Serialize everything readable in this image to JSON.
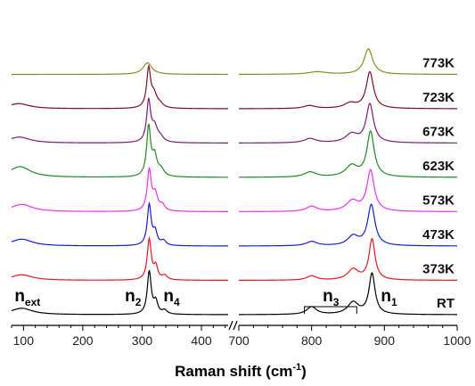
{
  "chart_data": {
    "type": "line",
    "title": "",
    "xlabel": "Raman shift (cm",
    "xlabel_sup": "-1",
    "xlabel_close": ")",
    "ylabel": "",
    "x_break": true,
    "x_ranges": [
      [
        80,
        445
      ],
      [
        700,
        1000
      ]
    ],
    "x_ticks_left": [
      100,
      200,
      300,
      400
    ],
    "x_ticks_right": [
      700,
      800,
      900,
      1000
    ],
    "grid": false,
    "series": [
      {
        "name": "RT",
        "color": "#000000",
        "offset": 0
      },
      {
        "name": "373K",
        "color": "#e8141e",
        "offset": 1
      },
      {
        "name": "473K",
        "color": "#1b1bd6",
        "offset": 2
      },
      {
        "name": "573K",
        "color": "#ee2cee",
        "offset": 3
      },
      {
        "name": "623K",
        "color": "#1e8a1e",
        "offset": 4
      },
      {
        "name": "673K",
        "color": "#7a1a7a",
        "offset": 5
      },
      {
        "name": "723K",
        "color": "#7a0f22",
        "offset": 6
      },
      {
        "name": "773K",
        "color": "#8c8c1e",
        "offset": 7
      }
    ],
    "peaks": [
      {
        "series": "RT",
        "list": [
          [
            97,
            22,
            0.15
          ],
          [
            312,
            4,
            1.0
          ],
          [
            323,
            4,
            0.28
          ],
          [
            338,
            5,
            0.09
          ],
          [
            800,
            8,
            0.18
          ],
          [
            857,
            9,
            0.28
          ],
          [
            883,
            5,
            0.95
          ]
        ]
      },
      {
        "series": "373K",
        "list": [
          [
            97,
            22,
            0.13
          ],
          [
            312,
            4,
            0.95
          ],
          [
            323,
            4,
            0.3
          ],
          [
            338,
            5,
            0.1
          ],
          [
            800,
            8,
            0.1
          ],
          [
            857,
            9,
            0.25
          ],
          [
            883,
            5,
            0.95
          ]
        ]
      },
      {
        "series": "473K",
        "list": [
          [
            97,
            22,
            0.16
          ],
          [
            312,
            4,
            0.95
          ],
          [
            322,
            4,
            0.3
          ],
          [
            336,
            5,
            0.11
          ],
          [
            800,
            9,
            0.1
          ],
          [
            857,
            9,
            0.22
          ],
          [
            882,
            6,
            0.95
          ]
        ]
      },
      {
        "series": "573K",
        "list": [
          [
            97,
            22,
            0.17
          ],
          [
            312,
            4,
            0.95
          ],
          [
            322,
            5,
            0.38
          ],
          [
            334,
            5,
            0.13
          ],
          [
            800,
            9,
            0.12
          ],
          [
            856,
            10,
            0.24
          ],
          [
            881,
            6,
            0.95
          ]
        ]
      },
      {
        "series": "623K",
        "list": [
          [
            94,
            22,
            0.25
          ],
          [
            311,
            4,
            1.15
          ],
          [
            321,
            5,
            0.45
          ],
          [
            332,
            6,
            0.15
          ],
          [
            798,
            10,
            0.12
          ],
          [
            855,
            10,
            0.26
          ],
          [
            881,
            6,
            1.05
          ]
        ]
      },
      {
        "series": "673K",
        "list": [
          [
            93,
            22,
            0.14
          ],
          [
            311,
            4,
            0.95
          ],
          [
            321,
            6,
            0.35
          ],
          [
            331,
            6,
            0.1
          ],
          [
            798,
            10,
            0.1
          ],
          [
            855,
            10,
            0.2
          ],
          [
            880,
            6,
            0.9
          ]
        ]
      },
      {
        "series": "723K",
        "list": [
          [
            92,
            22,
            0.12
          ],
          [
            311,
            4,
            0.9
          ],
          [
            320,
            6,
            0.3
          ],
          [
            330,
            6,
            0.08
          ],
          [
            797,
            10,
            0.07
          ],
          [
            853,
            10,
            0.12
          ],
          [
            880,
            6,
            0.85
          ]
        ]
      },
      {
        "series": "773K",
        "list": [
          [
            309,
            9,
            0.27
          ],
          [
            808,
            15,
            0.06
          ],
          [
            878,
            7,
            0.6
          ]
        ]
      }
    ],
    "mode_labels": [
      {
        "text": "n",
        "sub": "ext",
        "x_data": 97
      },
      {
        "text": "n",
        "sub": "2",
        "x_data": 283
      },
      {
        "text": "n",
        "sub": "4",
        "x_data": 348
      },
      {
        "text": "n",
        "sub": "3",
        "x_data": 825
      },
      {
        "text": "n",
        "sub": "1",
        "x_data": 905
      }
    ],
    "bracket": {
      "from": 790,
      "to": 862
    }
  }
}
